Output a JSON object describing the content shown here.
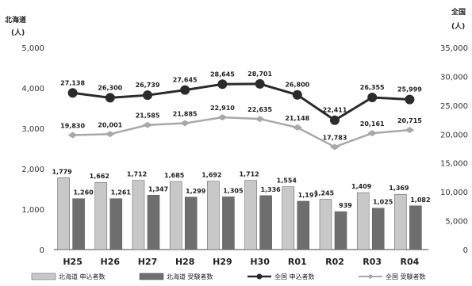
{
  "chart_data": {
    "type": "bar",
    "categories": [
      "H25",
      "H26",
      "H27",
      "H28",
      "H29",
      "H30",
      "R01",
      "R02",
      "R03",
      "R04"
    ],
    "left_axis": {
      "title": "北海道",
      "unit": "(人)",
      "ylim": [
        0,
        5000
      ],
      "ticks": [
        "0",
        "1,000",
        "2,000",
        "3,000",
        "4,000",
        "5,000"
      ]
    },
    "right_axis": {
      "title": "全国",
      "unit": "(人)",
      "ylim": [
        0,
        35000
      ],
      "ticks": [
        "0",
        "5,000",
        "10,000",
        "15,000",
        "20,000",
        "25,000",
        "30,000",
        "35,000"
      ]
    },
    "series": [
      {
        "name": "北海道 申込者数",
        "kind": "bar",
        "axis": "left",
        "color": "#c8c8c8",
        "values": [
          1779,
          1662,
          1712,
          1685,
          1692,
          1712,
          1554,
          1245,
          1409,
          1369
        ],
        "labels": [
          "1,779",
          "1,662",
          "1,712",
          "1,685",
          "1,692",
          "1,712",
          "1,554",
          "1,245",
          "1,409",
          "1,369"
        ]
      },
      {
        "name": "北海道 受験者数",
        "kind": "bar",
        "axis": "left",
        "color": "#6e6e6e",
        "values": [
          1260,
          1261,
          1347,
          1299,
          1305,
          1336,
          1197,
          939,
          1025,
          1082
        ],
        "labels": [
          "1,260",
          "1,261",
          "1,347",
          "1,299",
          "1,305",
          "1,336",
          "1,197",
          "939",
          "1,025",
          "1,082"
        ]
      },
      {
        "name": "全国 申込者数",
        "kind": "line",
        "axis": "right",
        "color": "#2b2b2b",
        "values": [
          27138,
          26300,
          26739,
          27645,
          28645,
          28701,
          26800,
          22411,
          26355,
          25999
        ],
        "labels": [
          "27,138",
          "26,300",
          "26,739",
          "27,645",
          "28,645",
          "28,701",
          "26,800",
          "22,411",
          "26,355",
          "25,999"
        ]
      },
      {
        "name": "全国 受験者数",
        "kind": "line",
        "axis": "right",
        "color": "#a8a8a8",
        "values": [
          19830,
          20001,
          21585,
          21885,
          22910,
          22635,
          21148,
          17783,
          20161,
          20715
        ],
        "labels": [
          "19,830",
          "20,001",
          "21,585",
          "21,885",
          "22,910",
          "22,635",
          "21,148",
          "17,783",
          "20,161",
          "20,715"
        ]
      }
    ],
    "legend_position": "bottom",
    "grid": false
  }
}
